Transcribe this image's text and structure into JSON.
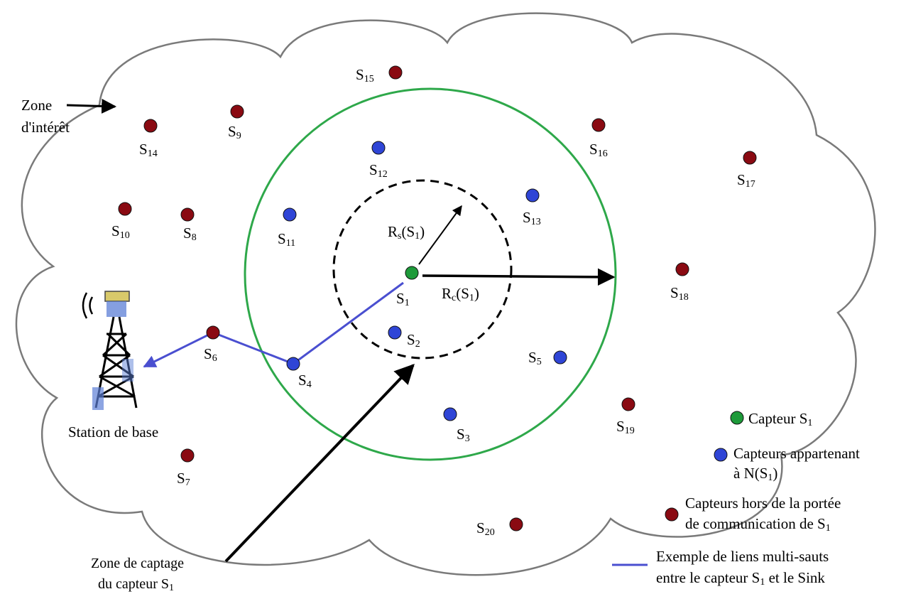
{
  "colors": {
    "focus_sensor": "#1e9a3a",
    "neighbor_sensor": "#2f45d6",
    "outside_sensor": "#8a0a12",
    "communication_range": "#2ea84a",
    "multi_hop_link": "#4a4fd0",
    "cloud_outline": "#7a7a7a"
  },
  "zone_label": {
    "line1": "Zone",
    "line2": "d'intérêt"
  },
  "base_station_label": "Station de base",
  "sensing_zone_label": {
    "line1": "Zone de captage",
    "line2": "du capteur S",
    "line2_sub": "1"
  },
  "rs_label": {
    "main": "R",
    "sub": "s",
    "rest": "(S",
    "sub2": "1",
    "end": ")"
  },
  "rc_label": {
    "main": "R",
    "sub": "c",
    "rest": "(S",
    "sub2": "1",
    "end": ")"
  },
  "sensors": [
    {
      "id": "s1",
      "base": "S",
      "sub": "1",
      "group": "focus"
    },
    {
      "id": "s2",
      "base": "S",
      "sub": "2",
      "group": "neighbor"
    },
    {
      "id": "s3",
      "base": "S",
      "sub": "3",
      "group": "neighbor"
    },
    {
      "id": "s4",
      "base": "S",
      "sub": "4",
      "group": "neighbor"
    },
    {
      "id": "s5",
      "base": "S",
      "sub": "5",
      "group": "neighbor"
    },
    {
      "id": "s6",
      "base": "S",
      "sub": "6",
      "group": "outside"
    },
    {
      "id": "s7",
      "base": "S",
      "sub": "7",
      "group": "outside"
    },
    {
      "id": "s8",
      "base": "S",
      "sub": "8",
      "group": "outside"
    },
    {
      "id": "s9",
      "base": "S",
      "sub": "9",
      "group": "outside"
    },
    {
      "id": "s10",
      "base": "S",
      "sub": "10",
      "group": "outside"
    },
    {
      "id": "s11",
      "base": "S",
      "sub": "11",
      "group": "neighbor"
    },
    {
      "id": "s12",
      "base": "S",
      "sub": "12",
      "group": "neighbor"
    },
    {
      "id": "s13",
      "base": "S",
      "sub": "13",
      "group": "neighbor"
    },
    {
      "id": "s14",
      "base": "S",
      "sub": "14",
      "group": "outside"
    },
    {
      "id": "s15",
      "base": "S",
      "sub": "15",
      "group": "outside"
    },
    {
      "id": "s16",
      "base": "S",
      "sub": "16",
      "group": "outside"
    },
    {
      "id": "s17",
      "base": "S",
      "sub": "17",
      "group": "outside"
    },
    {
      "id": "s18",
      "base": "S",
      "sub": "18",
      "group": "outside"
    },
    {
      "id": "s19",
      "base": "S",
      "sub": "19",
      "group": "outside"
    },
    {
      "id": "s20",
      "base": "S",
      "sub": "20",
      "group": "outside"
    }
  ],
  "legend": {
    "focus": {
      "text": "Capteur S",
      "sub": "1"
    },
    "neighbors": {
      "line1": "Capteurs appartenant",
      "line2": "à N(S",
      "line2_sub": "1",
      "line2_end": ")"
    },
    "outside": {
      "line1": "Capteurs hors de la portée",
      "line2": "de communication de S",
      "line2_sub": "1"
    },
    "link": {
      "line1": "Exemple de liens multi-sauts",
      "line2": "entre le capteur S",
      "line2_sub": "1",
      "line2_end": " et le Sink"
    }
  }
}
